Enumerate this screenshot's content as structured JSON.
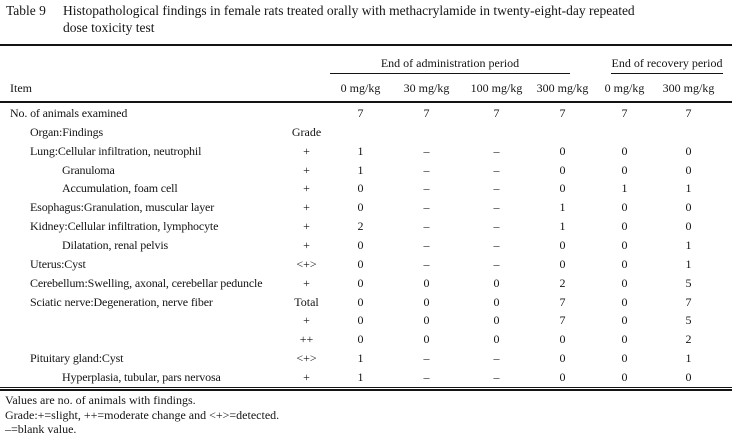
{
  "title": {
    "label": "Table 9",
    "caption_line1": "Histopathological findings in female rats treated orally with methacrylamide in twenty-eight-day repeated",
    "caption_line2": "dose toxicity test"
  },
  "table": {
    "item_header": "Item",
    "groups": [
      {
        "label": "End of administration period"
      },
      {
        "label": "End of recovery period"
      }
    ],
    "dose_columns": [
      "0 mg/kg",
      "30 mg/kg",
      "100 mg/kg",
      "300 mg/kg",
      "0 mg/kg",
      "300 mg/kg"
    ],
    "rows": [
      {
        "item": "No. of animals examined",
        "indent": 0,
        "grade": "",
        "values": [
          "7",
          "7",
          "7",
          "7",
          "7",
          "7"
        ]
      },
      {
        "item": "Organ:Findings",
        "indent": 1,
        "grade": "Grade",
        "values": [
          "",
          "",
          "",
          "",
          "",
          ""
        ]
      },
      {
        "item": "Lung:Cellular infiltration, neutrophil",
        "indent": 1,
        "grade": "+",
        "values": [
          "1",
          "–",
          "–",
          "0",
          "0",
          "0"
        ]
      },
      {
        "item": "Granuloma",
        "indent": 2,
        "grade": "+",
        "values": [
          "1",
          "–",
          "–",
          "0",
          "0",
          "0"
        ]
      },
      {
        "item": "Accumulation, foam cell",
        "indent": 2,
        "grade": "+",
        "values": [
          "0",
          "–",
          "–",
          "0",
          "1",
          "1"
        ]
      },
      {
        "item": "Esophagus:Granulation, muscular layer",
        "indent": 1,
        "grade": "+",
        "values": [
          "0",
          "–",
          "–",
          "1",
          "0",
          "0"
        ]
      },
      {
        "item": "Kidney:Cellular infiltration, lymphocyte",
        "indent": 1,
        "grade": "+",
        "values": [
          "2",
          "–",
          "–",
          "1",
          "0",
          "0"
        ]
      },
      {
        "item": "Dilatation, renal pelvis",
        "indent": 2,
        "grade": "+",
        "values": [
          "0",
          "–",
          "–",
          "0",
          "0",
          "1"
        ]
      },
      {
        "item": "Uterus:Cyst",
        "indent": 1,
        "grade": "<+>",
        "values": [
          "0",
          "–",
          "–",
          "0",
          "0",
          "1"
        ]
      },
      {
        "item": "Cerebellum:Swelling, axonal, cerebellar peduncle",
        "indent": 1,
        "grade": "+",
        "values": [
          "0",
          "0",
          "0",
          "2",
          "0",
          "5"
        ]
      },
      {
        "item": "Sciatic nerve:Degeneration, nerve fiber",
        "indent": 1,
        "grade": "Total",
        "values": [
          "0",
          "0",
          "0",
          "7",
          "0",
          "7"
        ]
      },
      {
        "item": "",
        "indent": 1,
        "grade": "+",
        "values": [
          "0",
          "0",
          "0",
          "7",
          "0",
          "5"
        ]
      },
      {
        "item": "",
        "indent": 1,
        "grade": "++",
        "values": [
          "0",
          "0",
          "0",
          "0",
          "0",
          "2"
        ]
      },
      {
        "item": "Pituitary gland:Cyst",
        "indent": 1,
        "grade": "<+>",
        "values": [
          "1",
          "–",
          "–",
          "0",
          "0",
          "1"
        ]
      },
      {
        "item": "Hyperplasia, tubular, pars nervosa",
        "indent": 2,
        "grade": "+",
        "values": [
          "1",
          "–",
          "–",
          "0",
          "0",
          "0"
        ]
      }
    ]
  },
  "footnotes": [
    "Values are no. of animals with findings.",
    "Grade:+=slight, ++=moderate change and <+>=detected.",
    "–=blank value."
  ],
  "colors": {
    "text": "#141414",
    "background": "#ffffff",
    "rule": "#141414"
  }
}
